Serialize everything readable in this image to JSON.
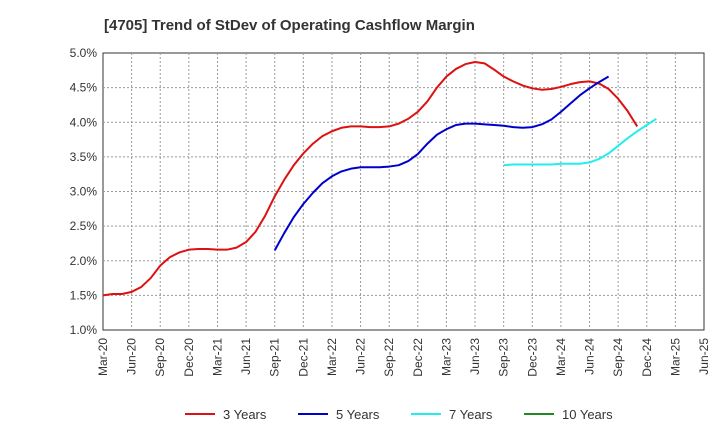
{
  "chart_data": {
    "type": "line",
    "title": "[4705]  Trend of StDev of Operating Cashflow Margin",
    "xlabel": "",
    "ylabel": "",
    "x_ticks": [
      "Mar-20",
      "Jun-20",
      "Sep-20",
      "Dec-20",
      "Mar-21",
      "Jun-21",
      "Sep-21",
      "Dec-21",
      "Mar-22",
      "Jun-22",
      "Sep-22",
      "Dec-22",
      "Mar-23",
      "Jun-23",
      "Sep-23",
      "Dec-23",
      "Mar-24",
      "Jun-24",
      "Sep-24",
      "Dec-24",
      "Mar-25",
      "Jun-25"
    ],
    "y_ticks": [
      "1.0%",
      "1.5%",
      "2.0%",
      "2.5%",
      "3.0%",
      "3.5%",
      "4.0%",
      "4.5%",
      "5.0%"
    ],
    "ylim": [
      1.0,
      5.0
    ],
    "grid": true,
    "legend_position": "bottom",
    "series": [
      {
        "name": "3 Years",
        "color": "#dd1111",
        "start_index": 0,
        "values": [
          1.5,
          1.52,
          1.52,
          1.55,
          1.62,
          1.75,
          1.93,
          2.05,
          2.12,
          2.16,
          2.17,
          2.17,
          2.16,
          2.16,
          2.19,
          2.27,
          2.42,
          2.65,
          2.93,
          3.17,
          3.38,
          3.55,
          3.69,
          3.8,
          3.87,
          3.92,
          3.94,
          3.94,
          3.93,
          3.93,
          3.94,
          3.98,
          4.05,
          4.15,
          4.3,
          4.5,
          4.66,
          4.77,
          4.84,
          4.87,
          4.85,
          4.76,
          4.66,
          4.59,
          4.53,
          4.49,
          4.47,
          4.48,
          4.51,
          4.55,
          4.58,
          4.59,
          4.56,
          4.48,
          4.34,
          4.16,
          3.94
        ]
      },
      {
        "name": "5 Years",
        "color": "#0000cc",
        "start_index": 18,
        "values": [
          2.15,
          2.4,
          2.63,
          2.82,
          2.98,
          3.12,
          3.22,
          3.29,
          3.33,
          3.35,
          3.35,
          3.35,
          3.36,
          3.38,
          3.44,
          3.54,
          3.69,
          3.82,
          3.9,
          3.96,
          3.98,
          3.98,
          3.97,
          3.96,
          3.95,
          3.93,
          3.92,
          3.93,
          3.97,
          4.04,
          4.15,
          4.27,
          4.39,
          4.49,
          4.58,
          4.66
        ]
      },
      {
        "name": "7 Years",
        "color": "#22eeee",
        "start_index": 42,
        "values": [
          3.38,
          3.39,
          3.39,
          3.39,
          3.39,
          3.39,
          3.4,
          3.4,
          3.4,
          3.42,
          3.47,
          3.55,
          3.66,
          3.77,
          3.87,
          3.96,
          4.05
        ]
      },
      {
        "name": "10 Years",
        "color": "#228822",
        "start_index": 0,
        "values": []
      }
    ]
  }
}
